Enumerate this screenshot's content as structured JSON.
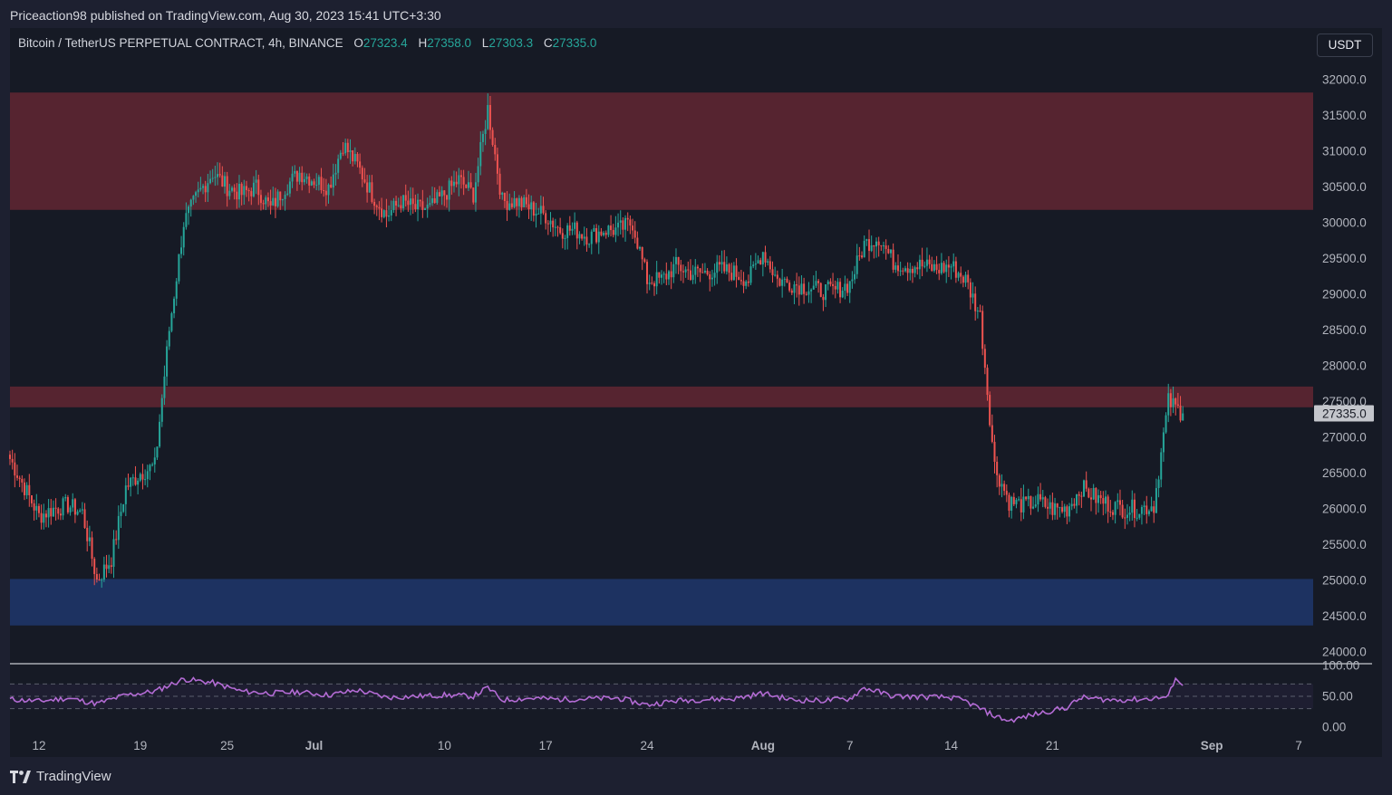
{
  "publisher": "Priceaction98 published on TradingView.com, Aug 30, 2023 15:41 UTC+3:30",
  "legend": {
    "symbol": "Bitcoin / TetherUS PERPETUAL CONTRACT, 4h, BINANCE",
    "open_label": "O",
    "open": "27323.4",
    "high_label": "H",
    "high": "27358.0",
    "low_label": "L",
    "low": "27303.3",
    "close_label": "C",
    "close": "27335.0"
  },
  "currency": "USDT",
  "footer": {
    "brand": "TradingView"
  },
  "colors": {
    "up": "#26a69a",
    "down": "#ef5350",
    "resistance_zone": "#5a2530",
    "support_zone": "#1e3464",
    "rsi_line": "#b36bd4",
    "background": "#161a25"
  },
  "chart_data": [
    {
      "type": "candlestick",
      "title": "Bitcoin / TetherUS PERPETUAL CONTRACT, 4h, BINANCE",
      "x_ticks": [
        "12",
        "19",
        "25",
        "Jul",
        "10",
        "17",
        "24",
        "Aug",
        "7",
        "14",
        "21",
        "Sep",
        "7"
      ],
      "x_range": [
        "2023-06-10",
        "2023-09-08"
      ],
      "y_ticks": [
        "24000.0",
        "24500.0",
        "25000.0",
        "25500.0",
        "26000.0",
        "26500.0",
        "27000.0",
        "27500.0",
        "28000.0",
        "28500.0",
        "29000.0",
        "29500.0",
        "30000.0",
        "30500.0",
        "31000.0",
        "31500.0",
        "32000.0"
      ],
      "ylim": [
        24000,
        32000
      ],
      "last_price": "27335.0",
      "zones": [
        {
          "name": "resistance",
          "from": 30180,
          "to": 31820
        },
        {
          "name": "resistance",
          "from": 27420,
          "to": 27710
        },
        {
          "name": "support",
          "from": 24370,
          "to": 25020
        }
      ],
      "price_path": [
        [
          "2023-06-10",
          26700
        ],
        [
          "2023-06-11",
          26300
        ],
        [
          "2023-06-12",
          25900
        ],
        [
          "2023-06-13",
          26000
        ],
        [
          "2023-06-14",
          26050
        ],
        [
          "2023-06-15",
          25950
        ],
        [
          "2023-06-16",
          25000
        ],
        [
          "2023-06-17",
          25300
        ],
        [
          "2023-06-18",
          26300
        ],
        [
          "2023-06-19",
          26500
        ],
        [
          "2023-06-20",
          26600
        ],
        [
          "2023-06-21",
          28500
        ],
        [
          "2023-06-22",
          30000
        ],
        [
          "2023-06-23",
          30400
        ],
        [
          "2023-06-24",
          30700
        ],
        [
          "2023-06-25",
          30500
        ],
        [
          "2023-06-26",
          30400
        ],
        [
          "2023-06-27",
          30500
        ],
        [
          "2023-06-28",
          30200
        ],
        [
          "2023-06-29",
          30500
        ],
        [
          "2023-06-30",
          30700
        ],
        [
          "2023-07-01",
          30600
        ],
        [
          "2023-07-02",
          30500
        ],
        [
          "2023-07-03",
          31100
        ],
        [
          "2023-07-04",
          30800
        ],
        [
          "2023-07-05",
          30400
        ],
        [
          "2023-07-06",
          30100
        ],
        [
          "2023-07-07",
          30300
        ],
        [
          "2023-07-08",
          30200
        ],
        [
          "2023-07-09",
          30200
        ],
        [
          "2023-07-10",
          30400
        ],
        [
          "2023-07-11",
          30600
        ],
        [
          "2023-07-12",
          30400
        ],
        [
          "2023-07-13",
          31600
        ],
        [
          "2023-07-14",
          30300
        ],
        [
          "2023-07-15",
          30300
        ],
        [
          "2023-07-16",
          30200
        ],
        [
          "2023-07-17",
          30100
        ],
        [
          "2023-07-18",
          29900
        ],
        [
          "2023-07-19",
          29900
        ],
        [
          "2023-07-20",
          29800
        ],
        [
          "2023-07-21",
          29900
        ],
        [
          "2023-07-22",
          29900
        ],
        [
          "2023-07-23",
          30000
        ],
        [
          "2023-07-24",
          29200
        ],
        [
          "2023-07-25",
          29200
        ],
        [
          "2023-07-26",
          29400
        ],
        [
          "2023-07-27",
          29300
        ],
        [
          "2023-07-28",
          29300
        ],
        [
          "2023-07-29",
          29350
        ],
        [
          "2023-07-30",
          29300
        ],
        [
          "2023-07-31",
          29200
        ],
        [
          "2023-08-01",
          29600
        ],
        [
          "2023-08-02",
          29200
        ],
        [
          "2023-08-03",
          29150
        ],
        [
          "2023-08-04",
          29100
        ],
        [
          "2023-08-05",
          29050
        ],
        [
          "2023-08-06",
          29050
        ],
        [
          "2023-08-07",
          29150
        ],
        [
          "2023-08-08",
          29700
        ],
        [
          "2023-08-09",
          29800
        ],
        [
          "2023-08-10",
          29450
        ],
        [
          "2023-08-11",
          29400
        ],
        [
          "2023-08-12",
          29400
        ],
        [
          "2023-08-13",
          29350
        ],
        [
          "2023-08-14",
          29400
        ],
        [
          "2023-08-15",
          29200
        ],
        [
          "2023-08-16",
          28700
        ],
        [
          "2023-08-17",
          26600
        ],
        [
          "2023-08-18",
          26100
        ],
        [
          "2023-08-19",
          26050
        ],
        [
          "2023-08-20",
          26100
        ],
        [
          "2023-08-21",
          26000
        ],
        [
          "2023-08-22",
          26000
        ],
        [
          "2023-08-23",
          26300
        ],
        [
          "2023-08-24",
          26150
        ],
        [
          "2023-08-25",
          26050
        ],
        [
          "2023-08-26",
          26000
        ],
        [
          "2023-08-27",
          26000
        ],
        [
          "2023-08-28",
          26050
        ],
        [
          "2023-08-29",
          27500
        ],
        [
          "2023-08-30",
          27335
        ]
      ]
    },
    {
      "type": "line",
      "title": "",
      "y_ticks": [
        "0.00",
        "50.00",
        "100.00"
      ],
      "ylim": [
        0,
        100
      ],
      "bands": [
        30,
        70
      ],
      "last_value": 65,
      "rsi_path": [
        [
          "2023-06-10",
          45
        ],
        [
          "2023-06-12",
          42
        ],
        [
          "2023-06-14",
          47
        ],
        [
          "2023-06-16",
          38
        ],
        [
          "2023-06-18",
          52
        ],
        [
          "2023-06-20",
          58
        ],
        [
          "2023-06-22",
          78
        ],
        [
          "2023-06-24",
          72
        ],
        [
          "2023-06-26",
          58
        ],
        [
          "2023-06-28",
          55
        ],
        [
          "2023-06-30",
          57
        ],
        [
          "2023-07-02",
          52
        ],
        [
          "2023-07-04",
          60
        ],
        [
          "2023-07-06",
          48
        ],
        [
          "2023-07-08",
          50
        ],
        [
          "2023-07-10",
          52
        ],
        [
          "2023-07-12",
          50
        ],
        [
          "2023-07-13",
          64
        ],
        [
          "2023-07-14",
          44
        ],
        [
          "2023-07-16",
          47
        ],
        [
          "2023-07-18",
          45
        ],
        [
          "2023-07-20",
          46
        ],
        [
          "2023-07-22",
          47
        ],
        [
          "2023-07-24",
          36
        ],
        [
          "2023-07-26",
          43
        ],
        [
          "2023-07-28",
          45
        ],
        [
          "2023-07-30",
          46
        ],
        [
          "2023-08-01",
          55
        ],
        [
          "2023-08-03",
          44
        ],
        [
          "2023-08-05",
          43
        ],
        [
          "2023-08-07",
          46
        ],
        [
          "2023-08-08",
          64
        ],
        [
          "2023-08-10",
          50
        ],
        [
          "2023-08-12",
          49
        ],
        [
          "2023-08-14",
          48
        ],
        [
          "2023-08-15",
          42
        ],
        [
          "2023-08-17",
          18
        ],
        [
          "2023-08-18",
          10
        ],
        [
          "2023-08-20",
          22
        ],
        [
          "2023-08-22",
          32
        ],
        [
          "2023-08-23",
          48
        ],
        [
          "2023-08-25",
          44
        ],
        [
          "2023-08-27",
          45
        ],
        [
          "2023-08-29",
          49
        ],
        [
          "2023-08-29T12",
          82
        ],
        [
          "2023-08-30",
          65
        ]
      ]
    }
  ]
}
